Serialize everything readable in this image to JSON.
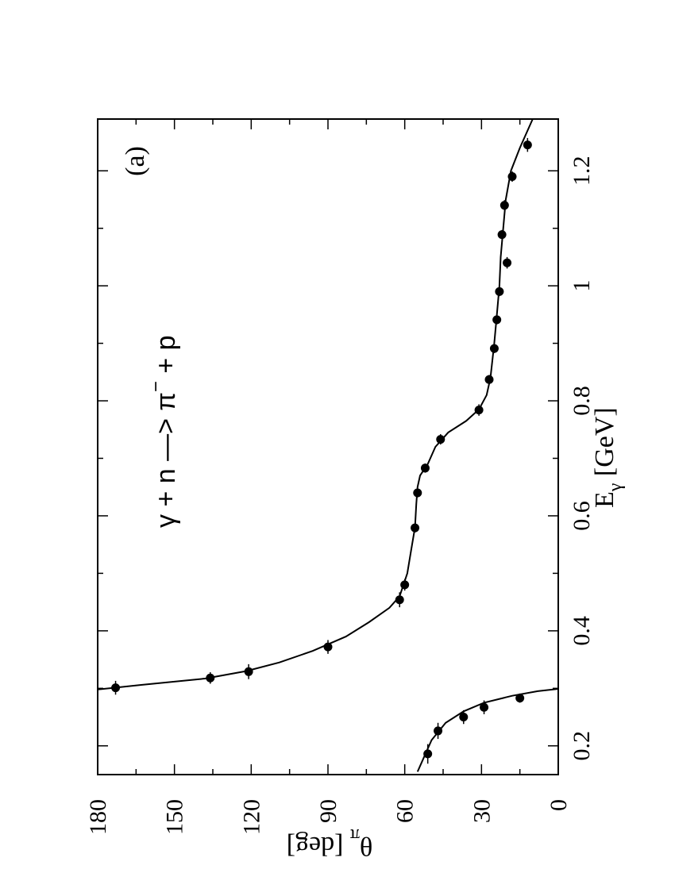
{
  "chart_data": {
    "type": "scatter",
    "orientation": "rotated-90-ccw",
    "panel_label": "(a)",
    "annotation": {
      "main": "γ + n —> π",
      "superscript": "−",
      "tail": " + p"
    },
    "xlabel": {
      "main": "E",
      "sub": "γ",
      "tail": " [GeV]"
    },
    "ylabel": {
      "main": "θ",
      "sub": "π",
      "tail": " [deg]"
    },
    "xlim": [
      0.15,
      1.29
    ],
    "ylim": [
      0,
      180
    ],
    "x_ticks": [
      0.2,
      0.4,
      0.6,
      0.8,
      1,
      1.2
    ],
    "x_tick_labels": [
      "0.2",
      "0.4",
      "0.6",
      "0.8",
      "1",
      "1.2"
    ],
    "y_ticks": [
      0,
      30,
      60,
      90,
      120,
      150,
      180
    ],
    "y_tick_labels": [
      "0",
      "30",
      "60",
      "90",
      "120",
      "150",
      "180"
    ],
    "series": [
      {
        "points": [
          {
            "x": 0.186,
            "y": 51,
            "xerr": 0.017
          },
          {
            "x": 0.226,
            "y": 47,
            "xerr": 0.014
          },
          {
            "x": 0.25,
            "y": 37,
            "xerr": 0.012
          },
          {
            "x": 0.267,
            "y": 29,
            "xerr": 0.012
          },
          {
            "x": 0.283,
            "y": 15,
            "xerr": 0.008
          },
          {
            "x": 0.301,
            "y": 173,
            "xerr": 0.012
          },
          {
            "x": 0.318,
            "y": 136,
            "xerr": 0.01
          },
          {
            "x": 0.329,
            "y": 121,
            "xerr": 0.013
          },
          {
            "x": 0.372,
            "y": 90,
            "xerr": 0.012
          },
          {
            "x": 0.454,
            "y": 62,
            "xerr": 0.013
          },
          {
            "x": 0.48,
            "y": 60,
            "xerr": 0.01
          },
          {
            "x": 0.579,
            "y": 56,
            "xerr": 0.008
          },
          {
            "x": 0.64,
            "y": 55,
            "xerr": 0.008
          },
          {
            "x": 0.683,
            "y": 52,
            "xerr": 0.008
          },
          {
            "x": 0.733,
            "y": 46,
            "xerr": 0.009
          },
          {
            "x": 0.784,
            "y": 31,
            "xerr": 0.01
          },
          {
            "x": 0.837,
            "y": 27,
            "xerr": 0.008
          },
          {
            "x": 0.891,
            "y": 25,
            "xerr": 0.008
          },
          {
            "x": 0.941,
            "y": 24,
            "xerr": 0.008
          },
          {
            "x": 0.99,
            "y": 23,
            "xerr": 0.008
          },
          {
            "x": 1.04,
            "y": 20,
            "xerr": 0.01
          },
          {
            "x": 1.089,
            "y": 22,
            "xerr": 0.008
          },
          {
            "x": 1.14,
            "y": 21,
            "xerr": 0.009
          },
          {
            "x": 1.19,
            "y": 18,
            "xerr": 0.009
          },
          {
            "x": 1.245,
            "y": 12,
            "xerr": 0.012
          }
        ]
      }
    ],
    "fit_curves": [
      [
        [
          0.155,
          55
        ],
        [
          0.18,
          52.5
        ],
        [
          0.21,
          49.5
        ],
        [
          0.24,
          44
        ],
        [
          0.26,
          37
        ],
        [
          0.275,
          29
        ],
        [
          0.287,
          18
        ],
        [
          0.295,
          8
        ],
        [
          0.299,
          0
        ]
      ],
      [
        [
          0.298,
          180
        ],
        [
          0.306,
          163
        ],
        [
          0.317,
          138
        ],
        [
          0.33,
          122
        ],
        [
          0.345,
          109
        ],
        [
          0.365,
          96
        ],
        [
          0.39,
          83
        ],
        [
          0.415,
          74
        ],
        [
          0.44,
          66
        ],
        [
          0.46,
          62
        ],
        [
          0.5,
          59
        ],
        [
          0.54,
          57.5
        ],
        [
          0.58,
          56
        ],
        [
          0.62,
          55.5
        ],
        [
          0.65,
          55
        ],
        [
          0.67,
          54
        ],
        [
          0.69,
          51
        ],
        [
          0.72,
          48
        ],
        [
          0.745,
          43
        ],
        [
          0.765,
          36
        ],
        [
          0.785,
          31
        ],
        [
          0.81,
          28
        ],
        [
          0.84,
          26.5
        ],
        [
          0.9,
          25
        ],
        [
          0.95,
          24
        ],
        [
          1.0,
          23
        ],
        [
          1.05,
          22.5
        ],
        [
          1.1,
          21.5
        ],
        [
          1.15,
          20.5
        ],
        [
          1.2,
          18.5
        ],
        [
          1.24,
          15
        ],
        [
          1.29,
          10
        ]
      ]
    ]
  }
}
